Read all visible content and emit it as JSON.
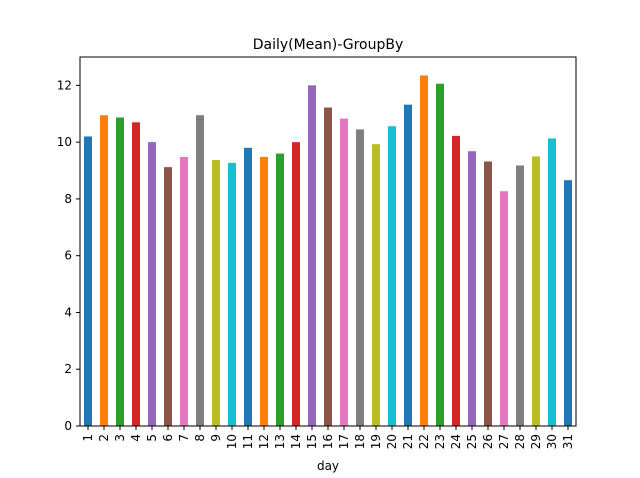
{
  "chart_data": {
    "type": "bar",
    "title": "Daily(Mean)-GroupBy",
    "xlabel": "day",
    "ylabel": "",
    "categories": [
      "1",
      "2",
      "3",
      "4",
      "5",
      "6",
      "7",
      "8",
      "9",
      "10",
      "11",
      "12",
      "13",
      "14",
      "15",
      "16",
      "17",
      "18",
      "19",
      "20",
      "21",
      "22",
      "23",
      "24",
      "25",
      "26",
      "27",
      "28",
      "29",
      "30",
      "31"
    ],
    "values": [
      10.2,
      10.95,
      10.87,
      10.7,
      10.0,
      9.12,
      9.48,
      10.95,
      9.37,
      9.27,
      9.8,
      9.48,
      9.6,
      10.0,
      12.0,
      11.22,
      10.83,
      10.45,
      9.93,
      10.56,
      11.32,
      12.35,
      12.06,
      10.22,
      9.68,
      9.32,
      8.27,
      9.18,
      9.5,
      10.13,
      8.66
    ],
    "ylim": [
      0,
      13
    ],
    "yticks": [
      0,
      2,
      4,
      6,
      8,
      10,
      12
    ],
    "grid": false,
    "legend": "none",
    "palette": [
      "#1f77b4",
      "#ff7f0e",
      "#2ca02c",
      "#d62728",
      "#9467bd",
      "#8c564b",
      "#e377c2",
      "#7f7f7f",
      "#bcbd22",
      "#17becf"
    ]
  }
}
